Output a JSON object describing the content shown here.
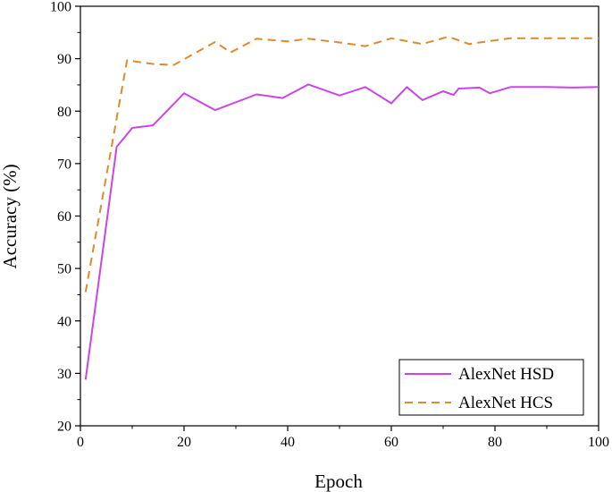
{
  "chart_data": {
    "type": "line",
    "title": "",
    "xlabel": "Epoch",
    "ylabel": "Accuracy (%)",
    "xlim": [
      0,
      100
    ],
    "ylim": [
      20,
      100
    ],
    "x_ticks": [
      0,
      20,
      40,
      60,
      80,
      100
    ],
    "y_ticks": [
      20,
      30,
      40,
      50,
      60,
      70,
      80,
      90,
      100
    ],
    "x_tick_labels": [
      "0",
      "20",
      "40",
      "60",
      "80",
      "100"
    ],
    "y_tick_labels": [
      "20",
      "30",
      "40",
      "50",
      "60",
      "70",
      "80",
      "90",
      "100"
    ],
    "grid": false,
    "legend_position": "bottom-right",
    "series": [
      {
        "name": "AlexNet HSD",
        "color": "#cc44e8",
        "style": "solid",
        "x": [
          1,
          7,
          10,
          14,
          20,
          26,
          34,
          39,
          44,
          50,
          55,
          60,
          63,
          66,
          70,
          72,
          73,
          75,
          77,
          79,
          83,
          90,
          95,
          100
        ],
        "y": [
          28.8,
          73.2,
          76.8,
          77.3,
          83.4,
          80.2,
          83.2,
          82.5,
          85.1,
          83.0,
          84.6,
          81.5,
          84.6,
          82.1,
          83.8,
          83.1,
          84.3,
          84.4,
          84.5,
          83.4,
          84.6,
          84.6,
          84.5,
          84.6
        ]
      },
      {
        "name": "AlexNet HCS",
        "color": "#e08a2c",
        "style": "dashed",
        "x": [
          1,
          9,
          14,
          18,
          26,
          29,
          34,
          40,
          44,
          50,
          55,
          60,
          66,
          71,
          75,
          80,
          83,
          90,
          100
        ],
        "y": [
          45.5,
          89.7,
          89.0,
          88.8,
          93.2,
          91.2,
          93.8,
          93.3,
          93.8,
          93.1,
          92.4,
          93.9,
          92.8,
          94.2,
          92.8,
          93.5,
          93.9,
          93.9,
          93.9
        ]
      }
    ]
  }
}
